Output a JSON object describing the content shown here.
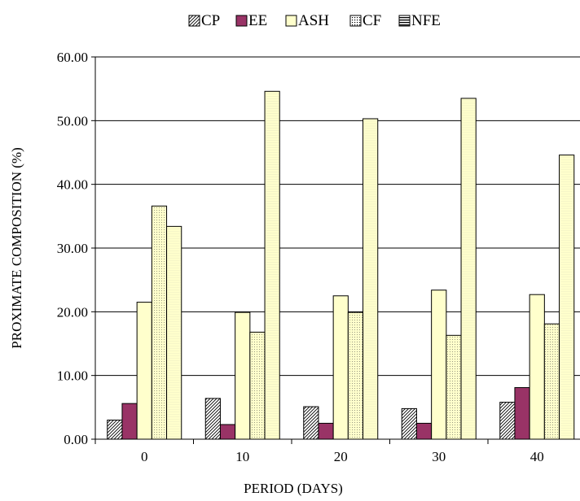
{
  "chart_data": {
    "type": "bar",
    "title": "",
    "xlabel": "PERIOD (DAYS)",
    "ylabel": "PROXIMATE COMPOSITION (%)",
    "categories": [
      "0",
      "10",
      "20",
      "30",
      "40"
    ],
    "ylim": [
      0,
      60
    ],
    "yticks": [
      "0.00",
      "10.00",
      "20.00",
      "30.00",
      "40.00",
      "50.00",
      "60.00"
    ],
    "grid": true,
    "legend_position": "top",
    "series": [
      {
        "name": "CP",
        "values": [
          3.0,
          6.4,
          5.1,
          4.8,
          5.8
        ],
        "color": "#ffffff",
        "pattern": "diagonal-hatch"
      },
      {
        "name": "EE",
        "values": [
          5.6,
          2.3,
          2.5,
          2.5,
          8.1
        ],
        "color": "#993366",
        "pattern": "solid"
      },
      {
        "name": "ASH",
        "values": [
          21.5,
          19.9,
          22.5,
          23.4,
          22.7
        ],
        "color": "#ffffcc",
        "pattern": "solid"
      },
      {
        "name": "CF",
        "values": [
          36.6,
          16.8,
          19.9,
          16.3,
          18.1
        ],
        "color": "#ffffcc",
        "pattern": "dotted"
      },
      {
        "name": "NFE",
        "values": [
          33.4,
          54.6,
          50.3,
          53.5,
          44.6
        ],
        "color": "#ffffcc",
        "pattern": "horizontal-lines"
      }
    ]
  }
}
